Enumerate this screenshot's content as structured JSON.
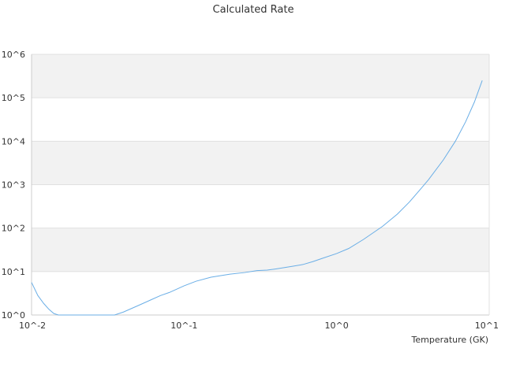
{
  "chart_data": {
    "type": "line",
    "title": "Calculated Rate",
    "xlabel": "Temperature (GK)",
    "ylabel": "",
    "x_scale": "log",
    "y_scale": "log",
    "xlim": [
      0.01,
      10
    ],
    "ylim": [
      1,
      1000000
    ],
    "x_ticks": [
      "10^-2",
      "10^-1",
      "10^0",
      "10^1"
    ],
    "y_ticks": [
      "10^0",
      "10^1",
      "10^2",
      "10^3",
      "10^4",
      "10^5",
      "10^6"
    ],
    "grid": "alternating horizontal bands",
    "legend": "none",
    "line_color": "#6aaee6",
    "band_color": "#f2f2f2",
    "series": [
      {
        "x": [
          0.01,
          0.011,
          0.012,
          0.013,
          0.014,
          0.015,
          0.016,
          0.017,
          0.018,
          0.019,
          0.02,
          0.022,
          0.024,
          0.026,
          0.028,
          0.03,
          0.035,
          0.04,
          0.05,
          0.06,
          0.07,
          0.08,
          0.1,
          0.12,
          0.15,
          0.2,
          0.25,
          0.3,
          0.35,
          0.4,
          0.5,
          0.6,
          0.7,
          0.8,
          1.0,
          1.2,
          1.5,
          2.0,
          2.5,
          3.0,
          3.5,
          4.0,
          5.0,
          6.0,
          7.0,
          8.0,
          9.0
        ],
        "y": [
          5.6,
          2.8,
          1.85,
          1.35,
          1.08,
          0.9,
          0.8,
          0.73,
          0.68,
          0.65,
          0.63,
          0.61,
          0.63,
          0.68,
          0.74,
          0.8,
          0.97,
          1.17,
          1.65,
          2.2,
          2.8,
          3.3,
          4.7,
          6.0,
          7.4,
          8.7,
          9.5,
          10.5,
          10.8,
          11.5,
          13.0,
          14.5,
          17.0,
          20.0,
          26.0,
          34.0,
          55.0,
          110.0,
          210.0,
          400.0,
          750.0,
          1300.0,
          3700.0,
          10000.0,
          28000.0,
          80000.0,
          250000.0
        ]
      }
    ]
  }
}
